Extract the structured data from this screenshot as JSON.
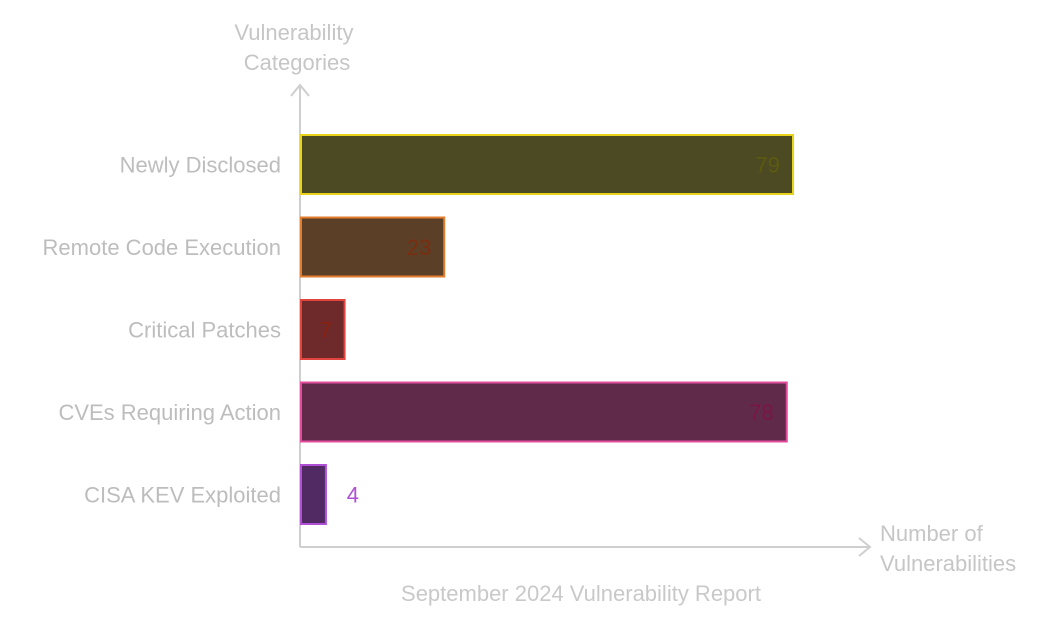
{
  "chart_data": {
    "type": "bar",
    "orientation": "horizontal",
    "ylabel": "Vulnerability Categories",
    "xlabel": "Number of Vulnerabilities",
    "caption": "September 2024 Vulnerability Report",
    "xlim": [
      0,
      80
    ],
    "grid": false,
    "categories": [
      "Newly Disclosed",
      "Remote Code Execution",
      "Critical Patches",
      "CVEs Requiring Action",
      "CISA KEV Exploited"
    ],
    "values": [
      79,
      23,
      7,
      78,
      4
    ],
    "colors": {
      "fill": [
        "#4b4a22",
        "#5c3f27",
        "#6e2a2a",
        "#602b4a",
        "#512a64"
      ],
      "stroke": [
        "#e8d21a",
        "#e27e2e",
        "#e2453e",
        "#e34b9c",
        "#b04fd6"
      ],
      "label": [
        "#5e5a10",
        "#7a2e0f",
        "#8a2010",
        "#7a1545",
        "#b04fd6"
      ]
    }
  }
}
